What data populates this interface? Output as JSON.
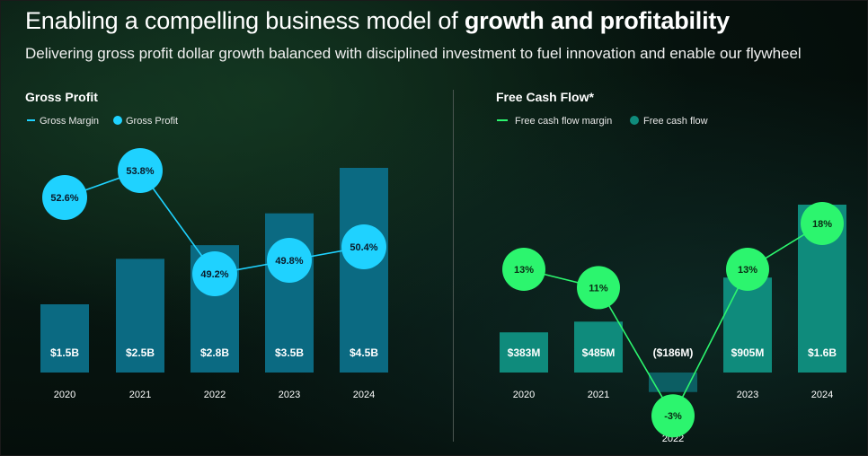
{
  "header": {
    "title_prefix": "Enabling a compelling business model of ",
    "title_bold": "growth and profitability",
    "subtitle": "Delivering gross profit dollar growth balanced with disciplined investment to fuel innovation and enable our flywheel"
  },
  "colors": {
    "gp_bar": "#0b6a82",
    "gp_marker": "#1fd2ff",
    "fcf_bar": "#0f8b7c",
    "fcf_marker": "#2cf56e",
    "fcf_neg_bar": "#0c5e63"
  },
  "chart_data": [
    {
      "type": "bar",
      "title": "Gross Profit",
      "categories": [
        "2020",
        "2021",
        "2022",
        "2023",
        "2024"
      ],
      "series": [
        {
          "name": "Gross Profit",
          "unit": "$B",
          "values": [
            1.5,
            2.5,
            2.8,
            3.5,
            4.5
          ],
          "labels": [
            "$1.5B",
            "$2.5B",
            "$2.8B",
            "$3.5B",
            "$4.5B"
          ]
        },
        {
          "name": "Gross Margin",
          "unit": "%",
          "values": [
            52.6,
            53.8,
            49.2,
            49.8,
            50.4
          ],
          "labels": [
            "52.6%",
            "53.8%",
            "49.2%",
            "49.8%",
            "50.4%"
          ]
        }
      ],
      "legend_position": "top-left"
    },
    {
      "type": "bar",
      "title": "Free Cash Flow*",
      "categories": [
        "2020",
        "2021",
        "2022",
        "2023",
        "2024"
      ],
      "series": [
        {
          "name": "Free cash flow",
          "unit": "$M",
          "values": [
            383,
            485,
            -186,
            905,
            1600
          ],
          "labels": [
            "$383M",
            "$485M",
            "($186M)",
            "$905M",
            "$1.6B"
          ]
        },
        {
          "name": "Free cash flow margin",
          "unit": "%",
          "values": [
            13,
            11,
            -3,
            13,
            18
          ],
          "labels": [
            "13%",
            "11%",
            "-3%",
            "13%",
            "18%"
          ]
        }
      ],
      "legend_position": "top-left"
    }
  ]
}
